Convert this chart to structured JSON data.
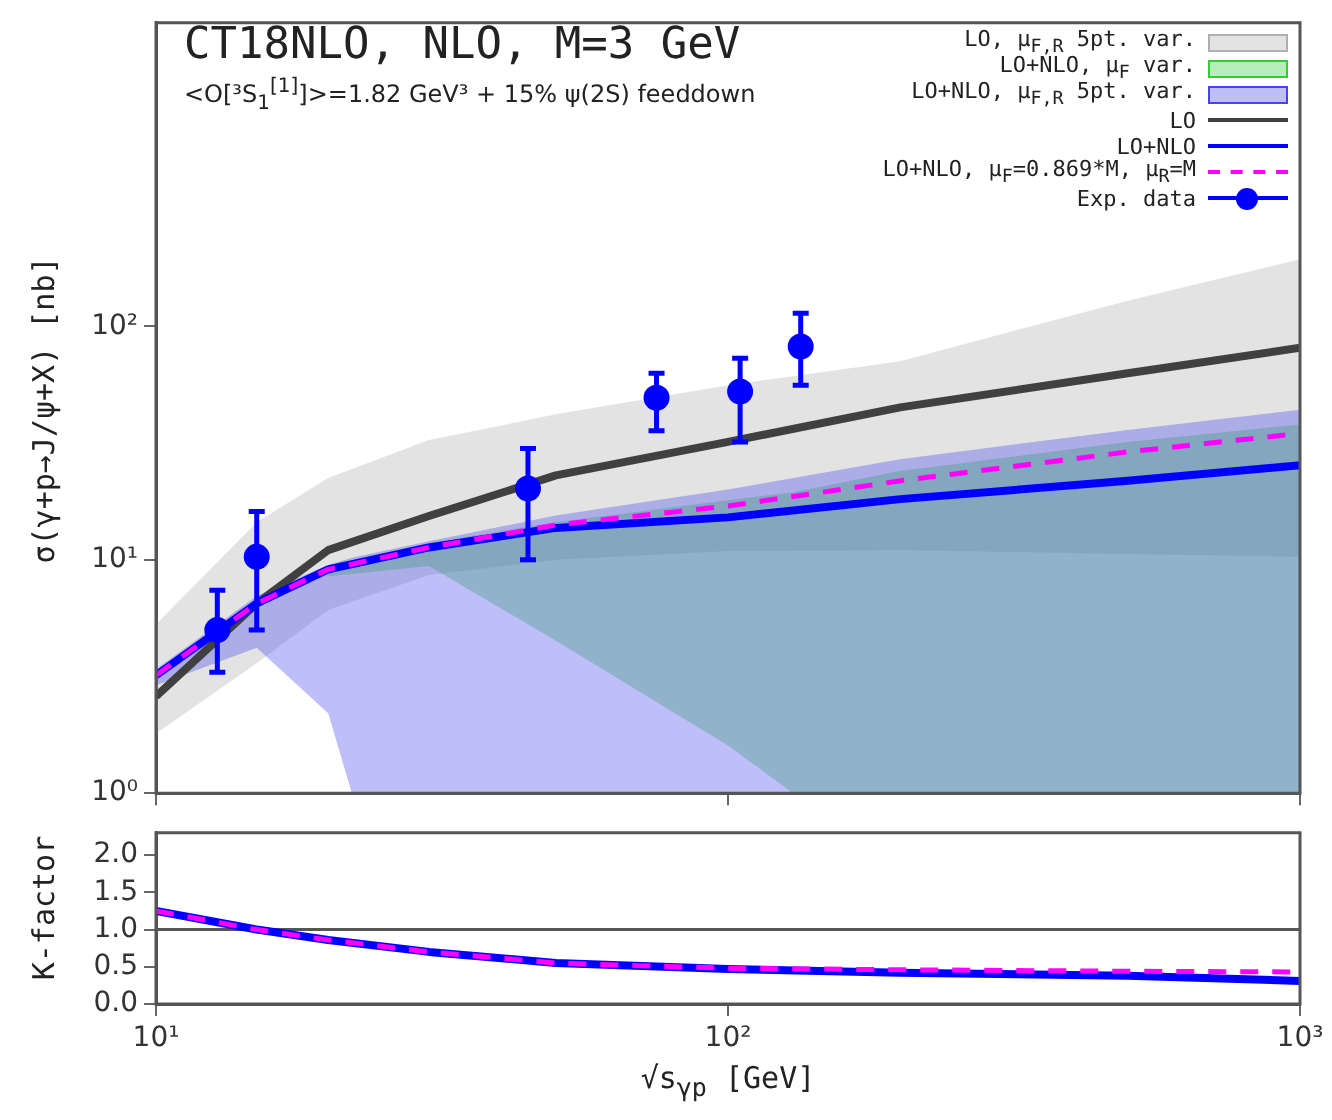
{
  "chart_data": [
    {
      "type": "line",
      "title": "CT18NLO, NLO, M=3 GeV",
      "subtitle": "<O[³S$_{1}$$^{[1]}$]>=1.82 GeV³ + 15% ψ(2S) feeddown",
      "ylabel": "σ(γ+p→J/ψ+X)  [nb]",
      "x": [
        10,
        15,
        20,
        30,
        50,
        100,
        200,
        500,
        1000
      ],
      "series": [
        {
          "type": "line",
          "name": "LO, μ$_{F,R}$ 5pt. var.",
          "color": "#b0b0b0",
          "values": [
            null,
            null,
            null,
            null,
            null,
            null,
            null,
            null,
            null
          ],
          "lower": [
            1.8,
            3.6,
            6.1,
            8.6,
            10,
            10.9,
            11,
            10.6,
            10.3
          ],
          "upper": [
            5.3,
            14.5,
            22.4,
            32.6,
            42,
            56,
            71,
            129,
            194
          ]
        },
        {
          "type": "line",
          "name": "LO+NLO, μ$_{F}$ var.",
          "color": "#33cc33",
          "x": [
            20,
            30,
            50,
            100,
            130,
            200,
            500,
            1000
          ],
          "values": [
            null,
            null,
            null,
            null,
            null,
            null,
            null,
            null
          ],
          "lower": [
            8.5,
            9.4,
            4.5,
            1.6,
            1,
            1,
            1,
            1
          ],
          "upper": [
            9.5,
            11.8,
            14.5,
            18,
            19.5,
            24,
            32,
            38
          ]
        },
        {
          "type": "line",
          "name": "LO+NLO, μ$_{F,R}$ 5pt. var.",
          "color": "#4444ee",
          "x": [
            10,
            15,
            20,
            22,
            30,
            50,
            100,
            200,
            500,
            1000
          ],
          "values": [
            null,
            null,
            null,
            null,
            null,
            null,
            null,
            null,
            null,
            null
          ],
          "lower": [
            2.9,
            4.2,
            2.2,
            1,
            1,
            1,
            1,
            1,
            1,
            1
          ],
          "upper": [
            3.4,
            7,
            9.5,
            10.2,
            12,
            15.5,
            20,
            27,
            36,
            44
          ]
        },
        {
          "type": "line",
          "name": "LO",
          "color": "#404040",
          "values": [
            2.6,
            6.5,
            11,
            15.4,
            23,
            32,
            45,
            63,
            81
          ]
        },
        {
          "type": "line",
          "name": "LO+NLO",
          "color": "#0000ff",
          "values": [
            3.2,
            6.5,
            9.1,
            11.3,
            13.7,
            15.2,
            18.2,
            21.8,
            25.4
          ]
        },
        {
          "type": "line",
          "name": "LO+NLO, μ$_{F}$=0.869*M, μ$_{R}$=M",
          "color": "#ff00ff",
          "line_style": "dashed",
          "values": [
            3.2,
            6.5,
            9.1,
            11.3,
            14.1,
            17,
            21.8,
            29,
            34.8
          ]
        },
        {
          "type": "scatter",
          "name": "Exp. data",
          "color": "#0000ff",
          "marker": "circle",
          "x": [
            12.8,
            15,
            44.7,
            75,
            105,
            134
          ],
          "values": [
            5.0,
            10.3,
            20.2,
            49.5,
            52.6,
            82
          ],
          "errors": [
            [
              3.3,
              7.4
            ],
            [
              5.0,
              16.1
            ],
            [
              10,
              30
            ],
            [
              35.7,
              63
            ],
            [
              32,
              73
            ],
            [
              56,
              114
            ]
          ]
        }
      ],
      "log": "xy",
      "xlim": [
        10,
        1000
      ],
      "ylim": [
        1,
        2000
      ],
      "xticks": [
        {
          "value": 10,
          "label": null
        },
        {
          "value": 100,
          "label": null
        },
        {
          "value": 1000,
          "label": null
        }
      ],
      "yticks": [
        {
          "value": 1,
          "label": "10⁰"
        },
        {
          "value": 10,
          "label": "10¹"
        },
        {
          "value": 100,
          "label": "10²"
        }
      ],
      "tick_labels": "y",
      "grid": false,
      "legend": "top right"
    },
    {
      "type": "line",
      "xlabel": "√s$_{γp}$  [GeV]",
      "ylabel": "K-factor",
      "x": [
        10,
        15,
        20,
        30,
        50,
        100,
        200,
        500,
        1000
      ],
      "series": [
        {
          "type": "line",
          "color": "#0000ff",
          "values": [
            1.25,
            1.0,
            0.86,
            0.7,
            0.55,
            0.47,
            0.42,
            0.38,
            0.31
          ]
        },
        {
          "type": "line",
          "color": "#ff00ff",
          "line_style": "dashed",
          "values": [
            1.25,
            1.0,
            0.86,
            0.7,
            0.55,
            0.48,
            0.46,
            0.44,
            0.43
          ]
        }
      ],
      "log": "x",
      "xlim": [
        10,
        1000
      ],
      "ylim": [
        0,
        2.3
      ],
      "xticks": [
        {
          "value": 10,
          "label": "10¹"
        },
        {
          "value": 100,
          "label": "10²"
        },
        {
          "value": 1000,
          "label": "10³"
        }
      ],
      "yticks": [
        {
          "value": 0,
          "label": "0.0"
        },
        {
          "value": 0.5,
          "label": "0.5"
        },
        {
          "value": 1,
          "label": "1.0"
        },
        {
          "value": 1.5,
          "label": "1.5"
        },
        {
          "value": 2,
          "label": "2.0"
        }
      ],
      "ref_lines": [
        {
          "axis": "y",
          "value": 1,
          "color": "#555555"
        }
      ],
      "grid": false
    }
  ]
}
